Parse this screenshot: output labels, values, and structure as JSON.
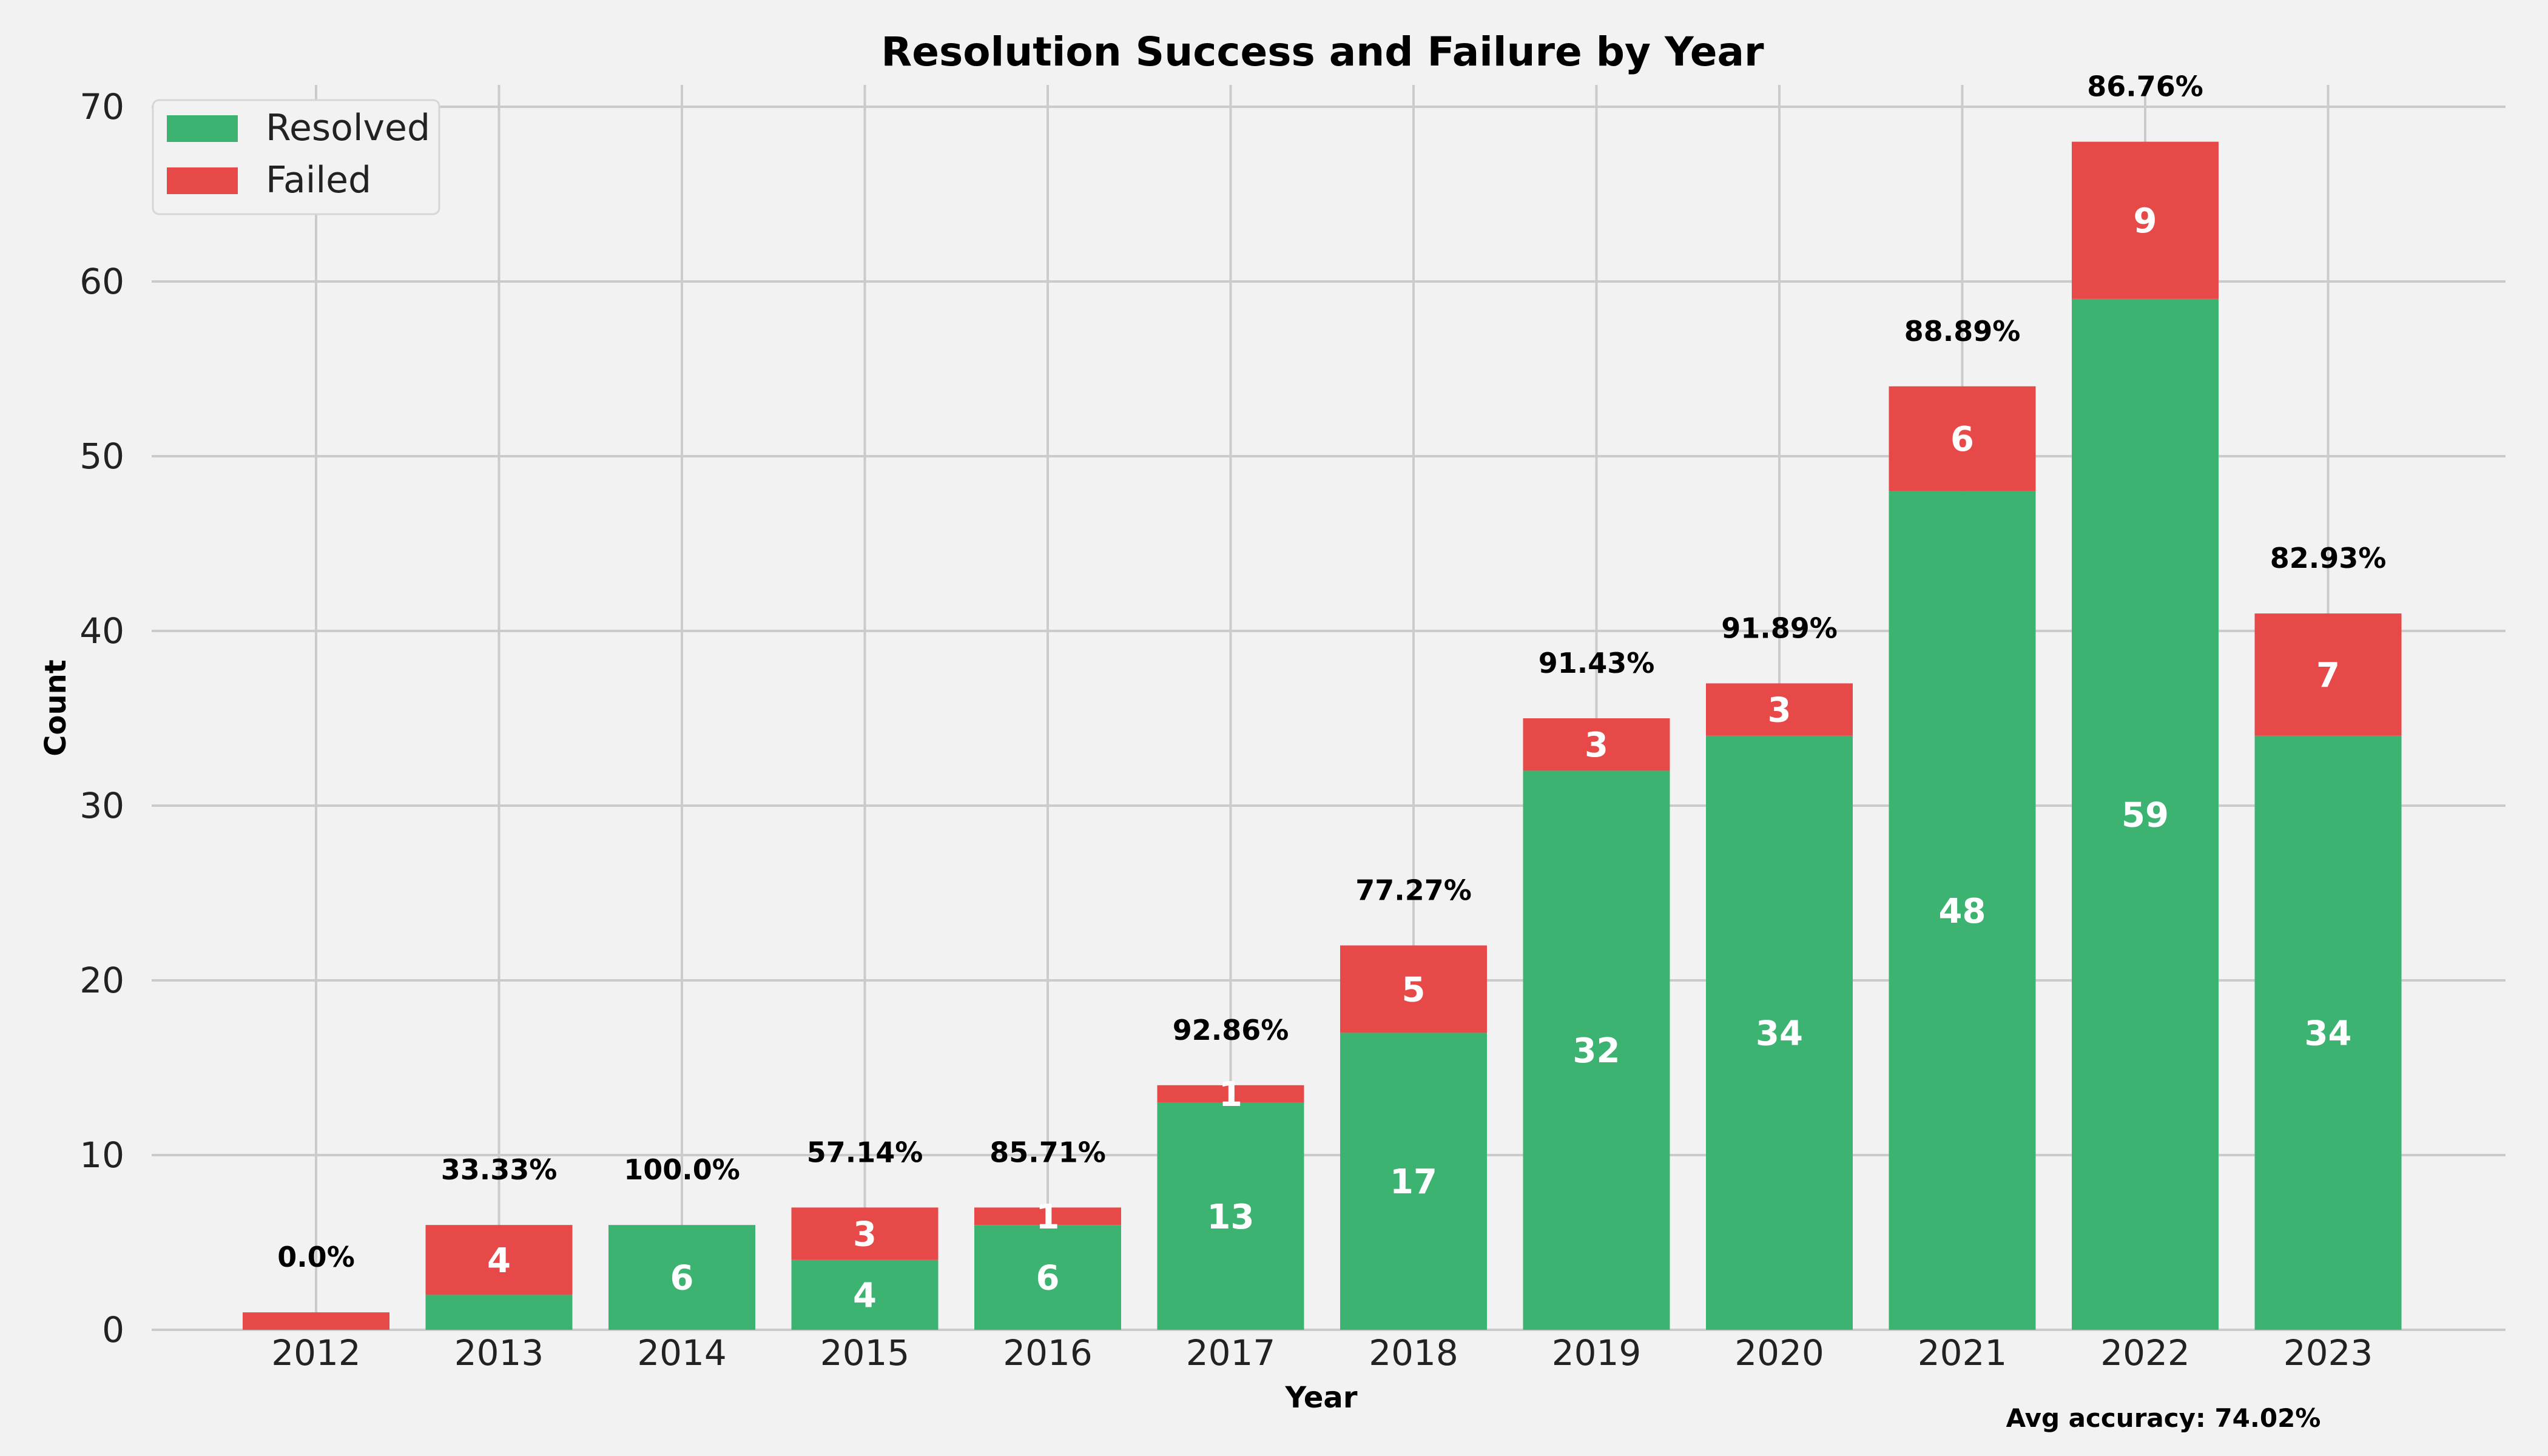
{
  "chart_data": {
    "type": "bar",
    "stacked": true,
    "title": "Resolution Success and Failure by Year",
    "xlabel": "Year",
    "ylabel": "Count",
    "ylim": [
      0,
      70
    ],
    "yticks": [
      0,
      10,
      20,
      30,
      40,
      50,
      60,
      70
    ],
    "grid": true,
    "legend_position": "top-left",
    "categories": [
      "2012",
      "2013",
      "2014",
      "2015",
      "2016",
      "2017",
      "2018",
      "2019",
      "2020",
      "2021",
      "2022",
      "2023"
    ],
    "series": [
      {
        "name": "Resolved",
        "color": "#3cb371",
        "values": [
          0,
          2,
          6,
          4,
          6,
          13,
          17,
          32,
          34,
          48,
          59,
          34
        ]
      },
      {
        "name": "Failed",
        "color": "#e74848",
        "values": [
          1,
          4,
          0,
          3,
          1,
          1,
          5,
          3,
          3,
          6,
          9,
          7
        ]
      }
    ],
    "segment_labels": {
      "Resolved": [
        "",
        "",
        "6",
        "4",
        "6",
        "13",
        "17",
        "32",
        "34",
        "48",
        "59",
        "34"
      ],
      "Failed": [
        "",
        "4",
        "",
        "3",
        "1",
        "1",
        "5",
        "3",
        "3",
        "6",
        "9",
        "7"
      ]
    },
    "percent_labels": [
      "0.0%",
      "33.33%",
      "100.0%",
      "57.14%",
      "85.71%",
      "92.86%",
      "77.27%",
      "91.43%",
      "91.89%",
      "88.89%",
      "86.76%",
      "82.93%"
    ],
    "footnote": "Avg accuracy: 74.02%"
  }
}
